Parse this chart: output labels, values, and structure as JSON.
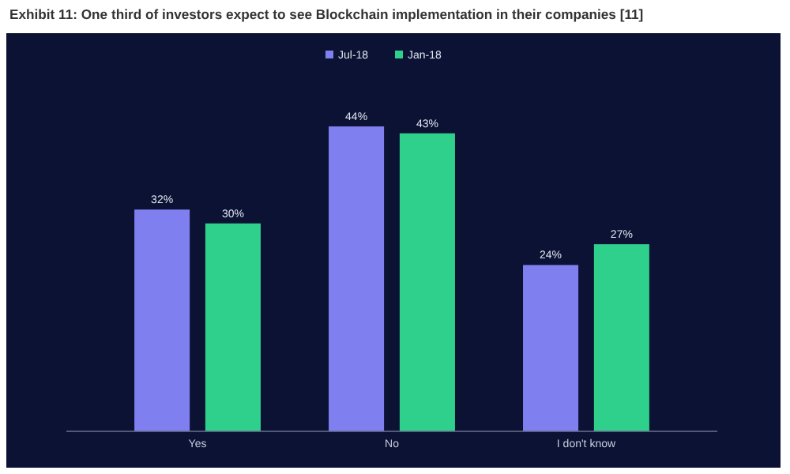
{
  "chart_data": {
    "type": "bar",
    "title": "Exhibit 11: One third of investors expect to see Blockchain implementation in their companies [11]",
    "categories": [
      "Yes",
      "No",
      "I don't know"
    ],
    "series": [
      {
        "name": "Jul-18",
        "color": "#7f7ff0",
        "values": [
          32,
          44,
          24
        ],
        "value_labels": [
          "32%",
          "44%",
          "24%"
        ]
      },
      {
        "name": "Jan-18",
        "color": "#2fcf8c",
        "values": [
          30,
          43,
          27
        ],
        "value_labels": [
          "30%",
          "43%",
          "27%"
        ]
      }
    ],
    "legend": "top"
  }
}
